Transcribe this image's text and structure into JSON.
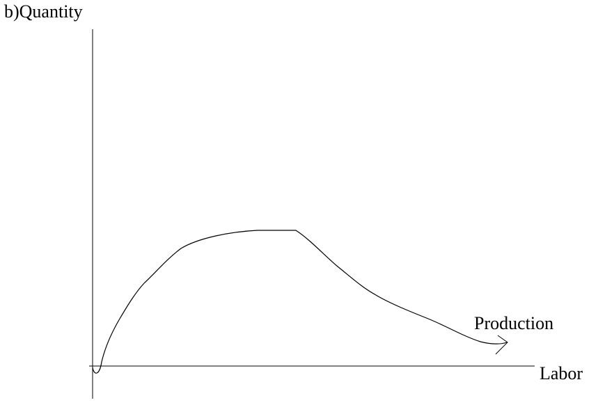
{
  "diagram": {
    "y_axis_label": "b)Quantity",
    "x_axis_label": "Labor",
    "curve_label": "Production",
    "colors": {
      "stroke": "#000000",
      "background": "#ffffff",
      "text": "#000000"
    }
  }
}
